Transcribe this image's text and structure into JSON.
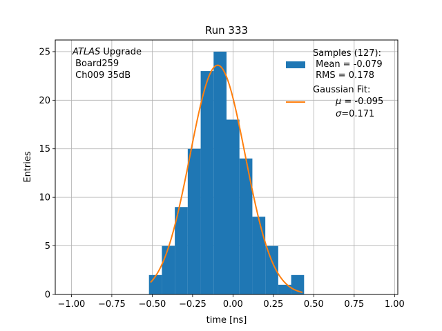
{
  "chart_data": {
    "type": "bar",
    "title": "Run 333",
    "xlabel": "time [ns]",
    "ylabel": "Entries",
    "xlim": [
      -1.1,
      1.02
    ],
    "ylim": [
      0,
      26.2
    ],
    "grid": true,
    "x_ticks": [
      -1.0,
      -0.75,
      -0.5,
      -0.25,
      0.0,
      0.25,
      0.5,
      0.75,
      1.0
    ],
    "x_tick_labels": [
      "−1.00",
      "−0.75",
      "−0.50",
      "−0.25",
      "0.00",
      "0.25",
      "0.50",
      "0.75",
      "1.00"
    ],
    "y_ticks": [
      0,
      5,
      10,
      15,
      20,
      25
    ],
    "y_tick_labels": [
      "0",
      "5",
      "10",
      "15",
      "20",
      "25"
    ],
    "bin_edges": [
      -0.52,
      -0.44,
      -0.36,
      -0.28,
      -0.2,
      -0.12,
      -0.04,
      0.04,
      0.12,
      0.2,
      0.28,
      0.36,
      0.44
    ],
    "bin_counts": [
      2,
      5,
      9,
      15,
      23,
      25,
      18,
      14,
      8,
      5,
      1,
      2
    ],
    "bar_color": "#1f77b4",
    "fit": {
      "type": "gaussian",
      "mu": -0.095,
      "sigma": 0.171,
      "amplitude": 23.6,
      "x_range": [
        -0.51,
        0.43
      ],
      "color": "#ff7f0e"
    },
    "annotation": {
      "italic": "ATLAS",
      "line1_rest": " Upgrade",
      "line2": " Board259",
      "line3": " Ch009 35dB"
    },
    "legend": {
      "placement": "top-right",
      "samples_line1": "Samples (127):",
      "samples_line2": " Mean = -0.079",
      "samples_line3": " RMS = 0.178",
      "fit_line1": "Gaussian Fit:",
      "fit_line2_mu_symbol": "μ",
      "fit_line2_rest": " = -0.095",
      "fit_line3_sigma_symbol": "σ",
      "fit_line3_rest": "=0.171"
    }
  }
}
